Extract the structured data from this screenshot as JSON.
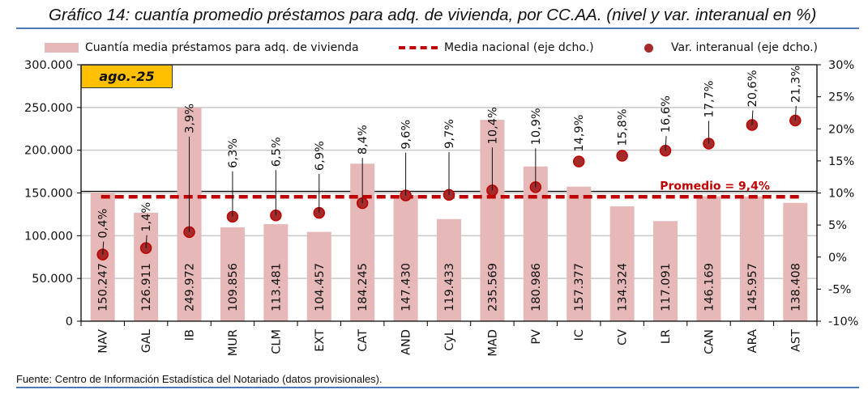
{
  "chart_data": {
    "type": "bar",
    "title": "Gráfico 14: cuantía promedio préstamos para adq. de vivienda, por CC.AA. (nivel y var. interanual en %)",
    "period_label": "ago.-25",
    "categories": [
      "NAV",
      "GAL",
      "IB",
      "MUR",
      "CLM",
      "EXT",
      "CAT",
      "AND",
      "CyL",
      "MAD",
      "PV",
      "IC",
      "CV",
      "LR",
      "CAN",
      "ARA",
      "AST"
    ],
    "series": [
      {
        "name": "Cuantía media préstamos para adq. de vivienda",
        "type": "bar",
        "axis": "left",
        "color": "#e6b8b8",
        "values": [
          150247,
          126911,
          249972,
          109856,
          113481,
          104457,
          184245,
          147430,
          119433,
          235569,
          180986,
          157377,
          134324,
          117091,
          146169,
          145957,
          138408
        ],
        "labels": [
          "150.247",
          "126.911",
          "249.972",
          "109.856",
          "113.481",
          "104.457",
          "184.245",
          "147.430",
          "119.433",
          "235.569",
          "180.986",
          "157.377",
          "134.324",
          "117.091",
          "146.169",
          "145.957",
          "138.408"
        ]
      },
      {
        "name": "Media nacional (eje dcho.)",
        "type": "line",
        "axis": "right",
        "style": "dashed",
        "color": "#c00000",
        "value": 9.4
      },
      {
        "name": "Var. interanual (eje dcho.)",
        "type": "scatter",
        "axis": "right",
        "color": "#a52a2a",
        "values": [
          0.4,
          1.4,
          3.9,
          6.3,
          6.5,
          6.9,
          8.4,
          9.6,
          9.7,
          10.4,
          10.9,
          14.9,
          15.8,
          16.6,
          17.7,
          20.6,
          21.3
        ],
        "labels": [
          "0,4%",
          "1,4%",
          "3,9%",
          "6,3%",
          "6,5%",
          "6,9%",
          "8,4%",
          "9,6%",
          "9,7%",
          "10,4%",
          "10,9%",
          "14,9%",
          "15,8%",
          "16,6%",
          "17,7%",
          "20,6%",
          "21,3%"
        ]
      }
    ],
    "annotation": "Promedio = 9,4%",
    "left_axis": {
      "ylim": [
        0,
        300000
      ],
      "ticks": [
        0,
        50000,
        100000,
        150000,
        200000,
        250000,
        300000
      ],
      "tick_labels": [
        "0",
        "50.000",
        "100.000",
        "150.000",
        "200.000",
        "250.000",
        "300.000"
      ]
    },
    "right_axis": {
      "ylim": [
        -10,
        30
      ],
      "ticks": [
        -10,
        -5,
        0,
        5,
        10,
        15,
        20,
        25,
        30
      ],
      "tick_labels": [
        "-10%",
        "-5%",
        "0%",
        "5%",
        "10%",
        "15%",
        "20%",
        "25%",
        "30%"
      ]
    },
    "grid": true,
    "legend_position": "top"
  },
  "legend": {
    "bar": "Cuantía media préstamos para adq. de vivienda",
    "line": "Media nacional (eje dcho.)",
    "dot": "Var. interanual (eje dcho.)"
  },
  "footer": {
    "source": "Fuente: Centro de Información Estadística del Notariado (datos provisionales)."
  },
  "colors": {
    "bar": "#e6b8b8",
    "national_line": "#c00000",
    "dot": "#a52a2a",
    "badge": "#ffc000",
    "rule": "#4a7bb7"
  }
}
